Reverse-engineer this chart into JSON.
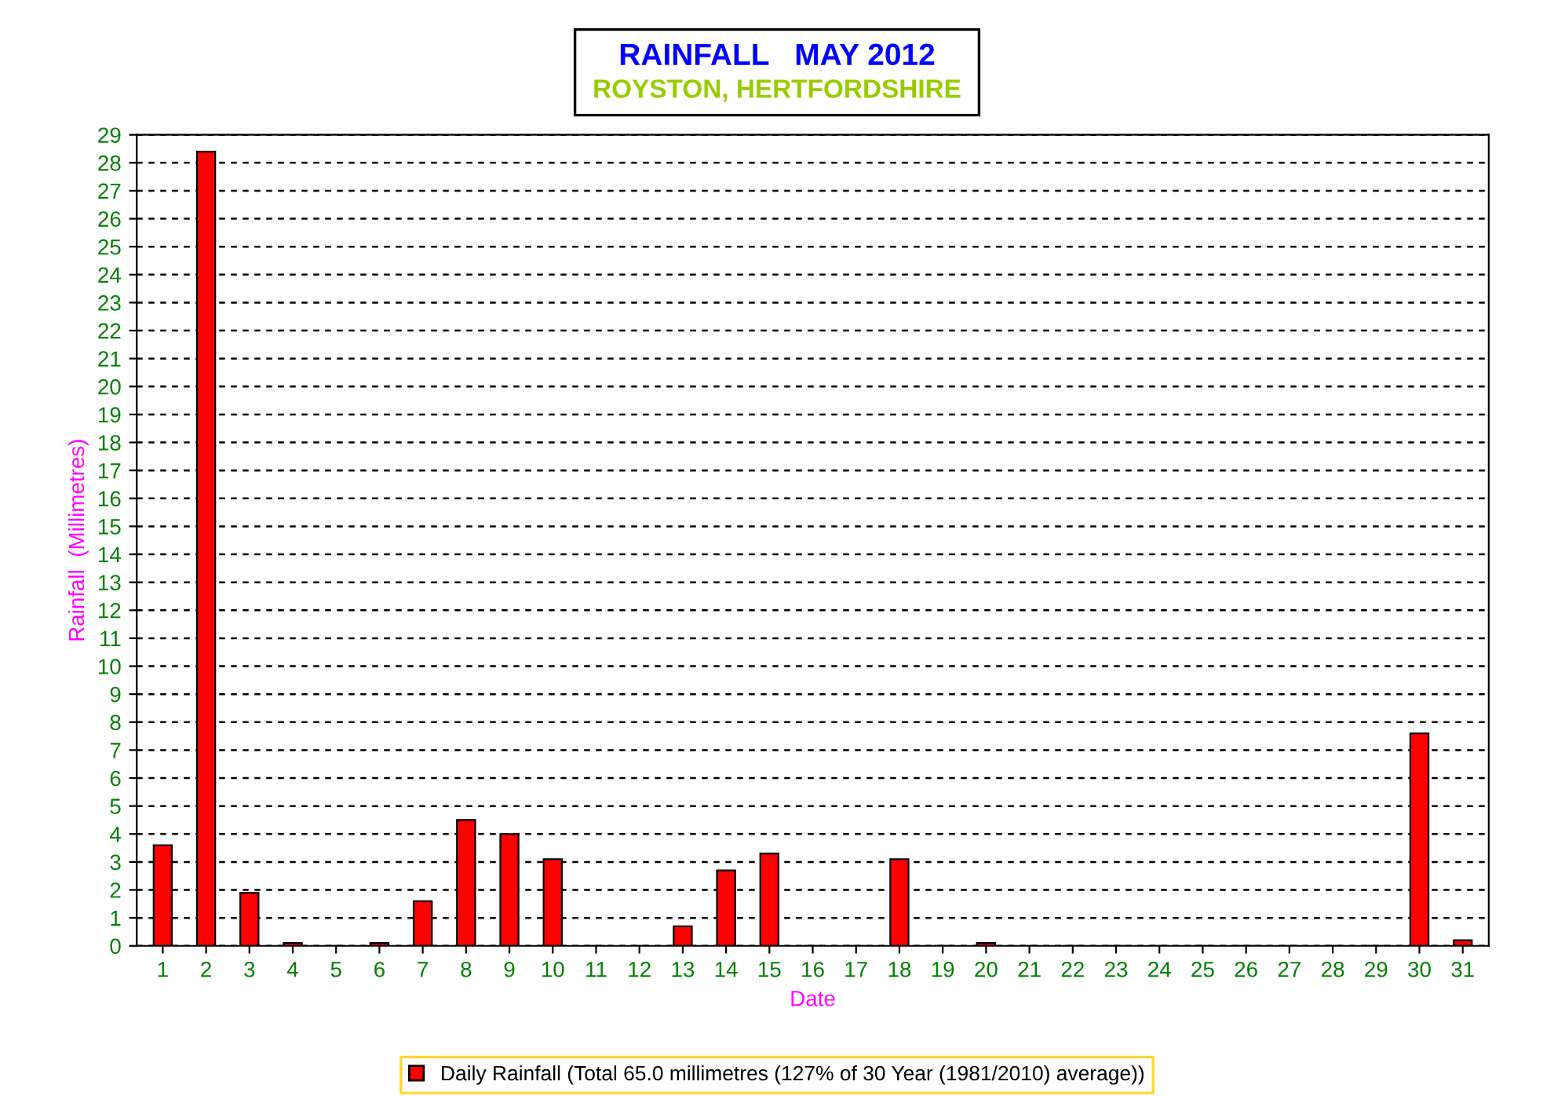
{
  "chart_data": {
    "type": "bar",
    "title": "RAINFALL   MAY 2012",
    "subtitle": "ROYSTON, HERTFORDSHIRE",
    "xlabel": "Date",
    "ylabel": "Rainfall  (Millimetres)",
    "categories": [
      "1",
      "2",
      "3",
      "4",
      "5",
      "6",
      "7",
      "8",
      "9",
      "10",
      "11",
      "12",
      "13",
      "14",
      "15",
      "16",
      "17",
      "18",
      "19",
      "20",
      "21",
      "22",
      "23",
      "24",
      "25",
      "26",
      "27",
      "28",
      "29",
      "30",
      "31"
    ],
    "series": [
      {
        "name": "Daily Rainfall (Total 65.0 millimetres (127% of 30 Year (1981/2010) average))",
        "color": "#ff0000",
        "values": [
          3.6,
          28.4,
          1.9,
          0.1,
          0,
          0.1,
          1.6,
          4.5,
          4.0,
          3.1,
          0,
          0,
          0.7,
          2.7,
          3.3,
          0,
          0,
          3.1,
          0,
          0.1,
          0,
          0,
          0,
          0,
          0,
          0,
          0,
          0,
          0,
          7.6,
          0.2
        ]
      }
    ],
    "ylim": [
      0,
      29
    ],
    "yticks": [
      0,
      1,
      2,
      3,
      4,
      5,
      6,
      7,
      8,
      9,
      10,
      11,
      12,
      13,
      14,
      15,
      16,
      17,
      18,
      19,
      20,
      21,
      22,
      23,
      24,
      25,
      26,
      27,
      28,
      29
    ],
    "grid": "y",
    "legend": "bottom"
  }
}
